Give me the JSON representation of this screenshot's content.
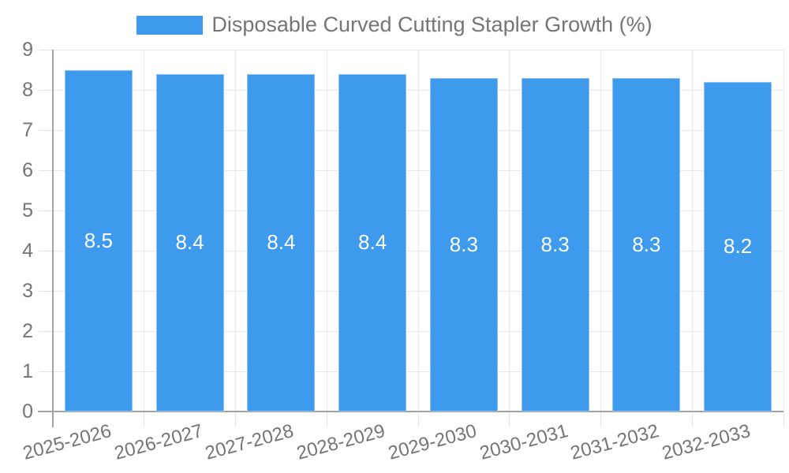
{
  "chart_data": {
    "type": "bar",
    "title": "",
    "legend": {
      "label": "Disposable Curved Cutting Stapler Growth (%)",
      "position": "top"
    },
    "categories": [
      "2025-2026",
      "2026-2027",
      "2027-2028",
      "2028-2029",
      "2029-2030",
      "2030-2031",
      "2031-2032",
      "2032-2033"
    ],
    "series": [
      {
        "name": "Disposable Curved Cutting Stapler Growth (%)",
        "values": [
          8.5,
          8.4,
          8.4,
          8.4,
          8.3,
          8.3,
          8.3,
          8.2
        ]
      }
    ],
    "value_labels": [
      "8.5",
      "8.4",
      "8.4",
      "8.4",
      "8.3",
      "8.3",
      "8.3",
      "8.2"
    ],
    "xlabel": "",
    "ylabel": "",
    "ylim": [
      0,
      9
    ],
    "ytick_step": 1,
    "yticks": [
      "0",
      "1",
      "2",
      "3",
      "4",
      "5",
      "6",
      "7",
      "8",
      "9"
    ],
    "grid": true,
    "x_label_rotation_deg": -15,
    "colors": {
      "bar_fill": "#3d9aec",
      "bar_border": "#8fc3f1",
      "grid_line": "#e8e8e8",
      "axis_line": "#a3a3a3",
      "tick_line": "#e0e0e0",
      "axis_text": "#757575",
      "value_text": "#ffffff"
    }
  }
}
